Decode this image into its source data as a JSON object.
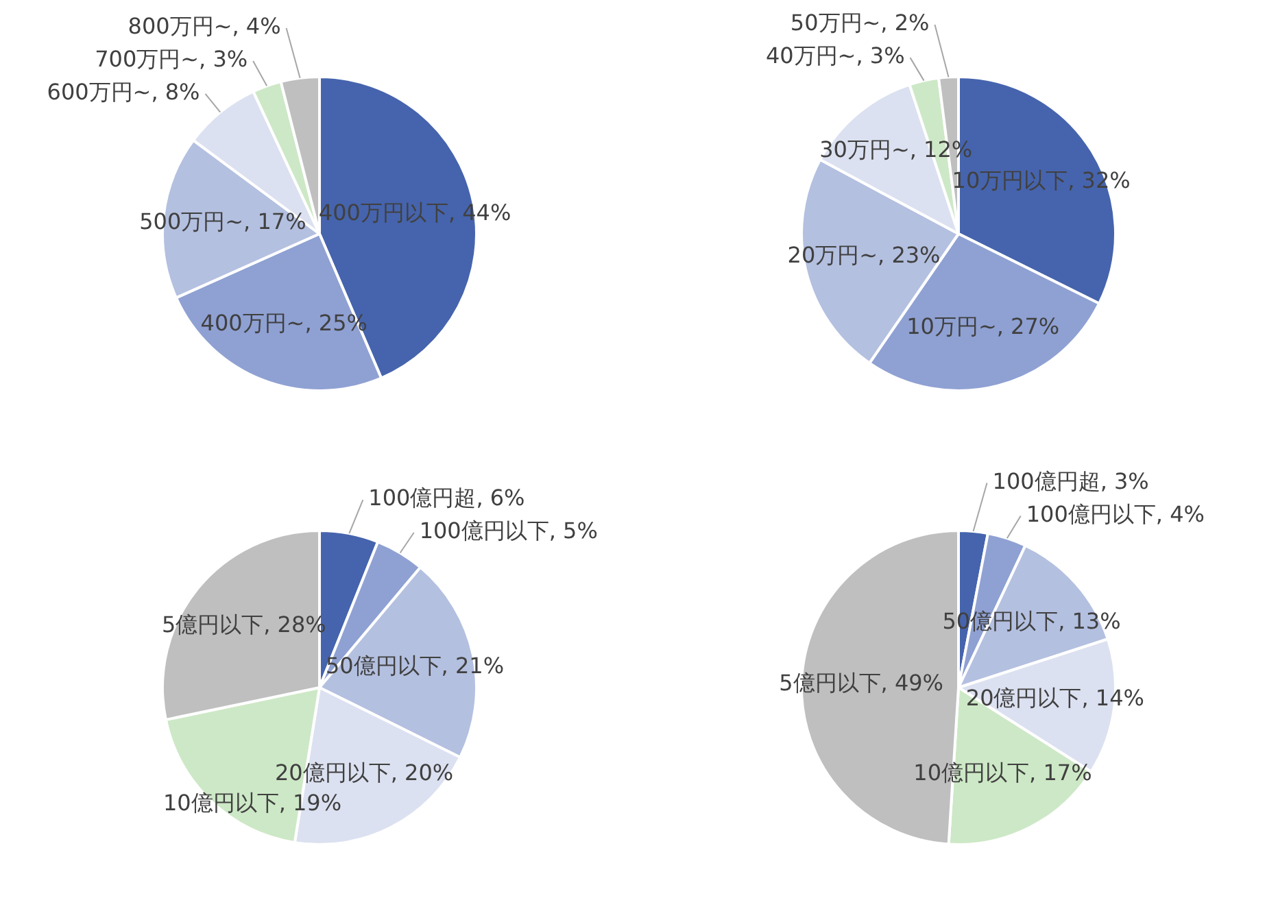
{
  "chart_data": [
    {
      "type": "pie",
      "categories": [
        "400万円以下",
        "400万円~",
        "500万円~",
        "600万円~",
        "700万円~",
        "800万円~"
      ],
      "values": [
        44,
        25,
        17,
        8,
        3,
        4
      ],
      "value_labels": [
        "44%",
        "25%",
        "17%",
        "8%",
        "3%",
        "4%"
      ],
      "colors": [
        "#4664ad",
        "#8fa1d3",
        "#b4c0e0",
        "#dce1f1",
        "#cde8c6",
        "#bfbfbf"
      ],
      "legend": false
    },
    {
      "type": "pie",
      "categories": [
        "10万円以下",
        "10万円~",
        "20万円~",
        "30万円~",
        "40万円~",
        "50万円~"
      ],
      "values": [
        32,
        27,
        23,
        12,
        3,
        2
      ],
      "value_labels": [
        "32%",
        "27%",
        "23%",
        "12%",
        "3%",
        "2%"
      ],
      "colors": [
        "#4664ad",
        "#8fa1d3",
        "#b4c0e0",
        "#dce1f1",
        "#cde8c6",
        "#bfbfbf"
      ],
      "legend": false
    },
    {
      "type": "pie",
      "categories": [
        "100億円超",
        "100億円以下",
        "50億円以下",
        "20億円以下",
        "10億円以下",
        "5億円以下"
      ],
      "values": [
        6,
        5,
        21,
        20,
        19,
        28
      ],
      "value_labels": [
        "6%",
        "5%",
        "21%",
        "20%",
        "19%",
        "28%"
      ],
      "colors": [
        "#4664ad",
        "#8fa1d3",
        "#b4c0e0",
        "#dce1f1",
        "#cde8c6",
        "#bfbfbf"
      ],
      "legend": false
    },
    {
      "type": "pie",
      "categories": [
        "100億円超",
        "100億円以下",
        "50億円以下",
        "20億円以下",
        "10億円以下",
        "5億円以下"
      ],
      "values": [
        3,
        4,
        13,
        14,
        17,
        49
      ],
      "value_labels": [
        "3%",
        "4%",
        "13%",
        "14%",
        "17%",
        "49%"
      ],
      "colors": [
        "#4664ad",
        "#8fa1d3",
        "#b4c0e0",
        "#dce1f1",
        "#cde8c6",
        "#bfbfbf"
      ],
      "legend": false
    }
  ]
}
